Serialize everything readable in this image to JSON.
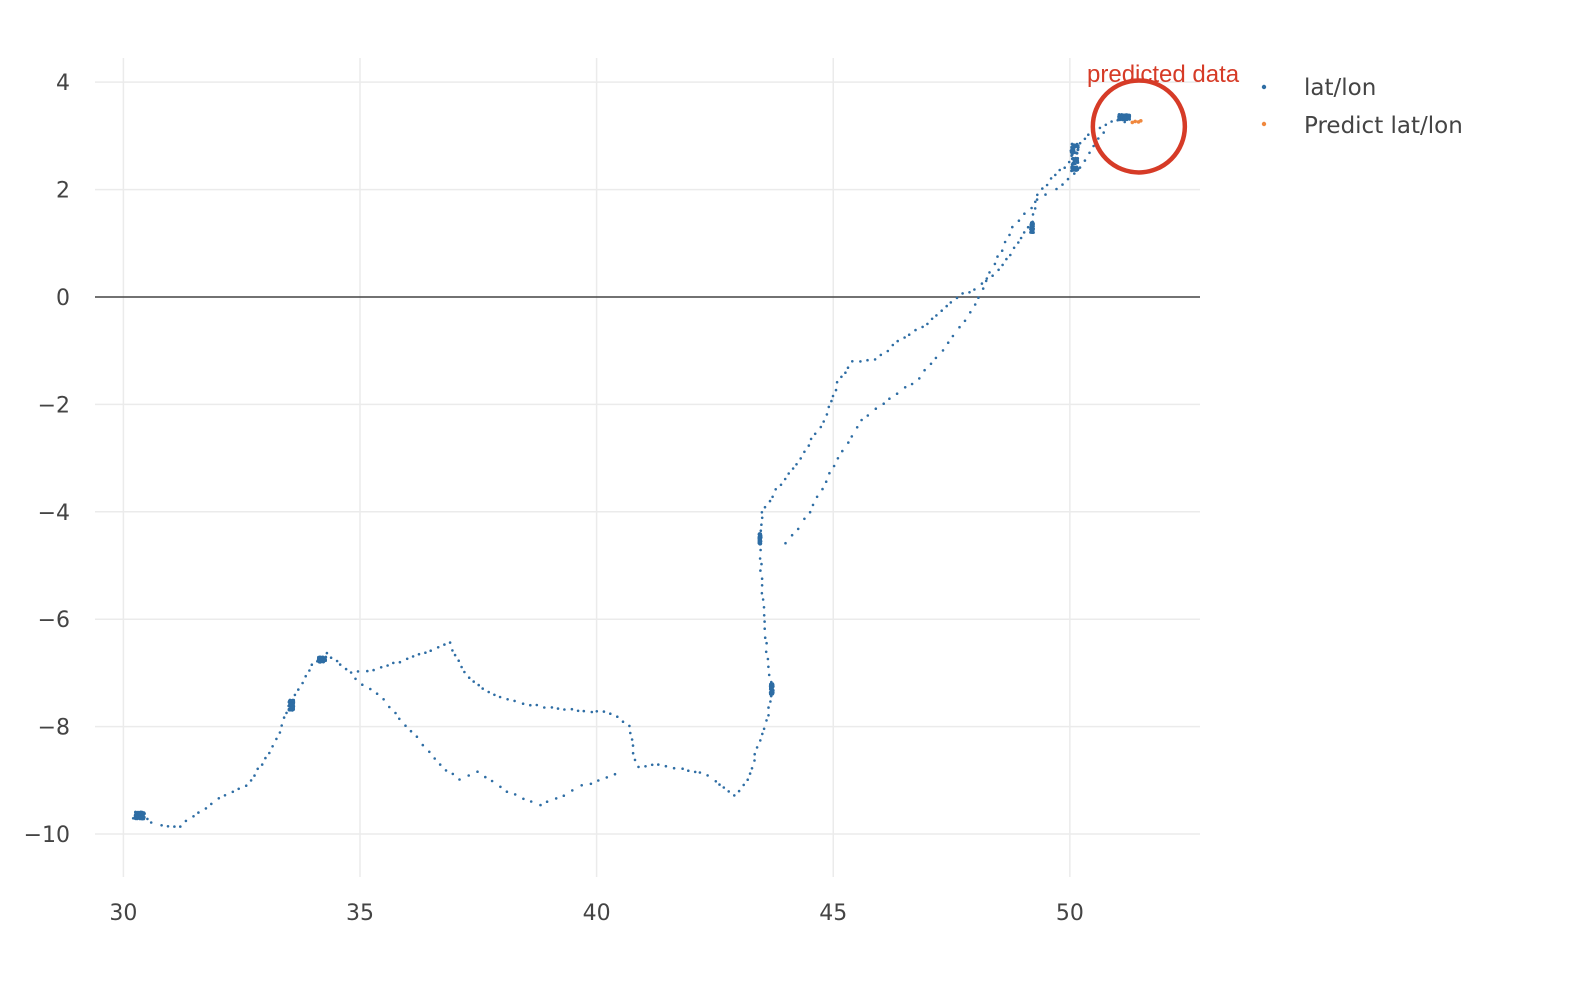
{
  "chart_data": {
    "type": "scatter",
    "title": "",
    "xlabel": "",
    "ylabel": "",
    "xlim": [
      29.4,
      52.75
    ],
    "ylim": [
      -10.8,
      4.45
    ],
    "x_ticks": [
      30,
      35,
      40,
      45,
      50
    ],
    "y_ticks": [
      4,
      2,
      0,
      -2,
      -4,
      -6,
      -8,
      -10
    ],
    "x_tick_labels": [
      "30",
      "35",
      "40",
      "45",
      "50"
    ],
    "y_tick_labels": [
      "4",
      "2",
      "0",
      "−2",
      "−4",
      "−6",
      "−8",
      "−10"
    ],
    "grid": true,
    "zero_line": true,
    "legend_position": "top-right",
    "series": [
      {
        "name": "lat/lon",
        "color": "#2e6da4",
        "path_anchors": [
          [
            30.2,
            -9.7
          ],
          [
            30.4,
            -9.65
          ],
          [
            30.6,
            -9.8
          ],
          [
            30.8,
            -9.85
          ],
          [
            31.2,
            -9.85
          ],
          [
            31.6,
            -9.6
          ],
          [
            32.0,
            -9.35
          ],
          [
            32.3,
            -9.2
          ],
          [
            32.6,
            -9.1
          ],
          [
            33.0,
            -8.6
          ],
          [
            33.3,
            -8.1
          ],
          [
            33.5,
            -7.6
          ],
          [
            33.7,
            -7.3
          ],
          [
            34.0,
            -6.85
          ],
          [
            34.3,
            -6.65
          ],
          [
            34.6,
            -6.85
          ],
          [
            34.8,
            -7.0
          ],
          [
            35.3,
            -6.95
          ],
          [
            36.0,
            -6.75
          ],
          [
            36.9,
            -6.45
          ],
          [
            37.2,
            -7.0
          ],
          [
            37.6,
            -7.3
          ],
          [
            38.1,
            -7.5
          ],
          [
            38.6,
            -7.6
          ],
          [
            39.2,
            -7.65
          ],
          [
            39.6,
            -7.7
          ],
          [
            40.3,
            -7.75
          ],
          [
            40.7,
            -8.0
          ],
          [
            40.8,
            -8.6
          ],
          [
            40.9,
            -8.75
          ],
          [
            41.3,
            -8.7
          ],
          [
            41.8,
            -8.8
          ],
          [
            42.2,
            -8.85
          ],
          [
            42.5,
            -9.0
          ],
          [
            42.9,
            -9.3
          ],
          [
            43.2,
            -9.0
          ],
          [
            43.4,
            -8.4
          ],
          [
            43.6,
            -7.9
          ],
          [
            43.7,
            -7.3
          ],
          [
            43.6,
            -6.6
          ],
          [
            43.5,
            -5.5
          ],
          [
            43.45,
            -4.6
          ],
          [
            43.5,
            -4.0
          ],
          [
            43.8,
            -3.6
          ],
          [
            44.3,
            -3.0
          ],
          [
            44.8,
            -2.3
          ],
          [
            45.1,
            -1.6
          ],
          [
            45.4,
            -1.2
          ],
          [
            45.9,
            -1.15
          ],
          [
            46.5,
            -0.75
          ],
          [
            47.0,
            -0.5
          ],
          [
            47.6,
            0.0
          ],
          [
            48.0,
            0.15
          ],
          [
            48.5,
            0.5
          ],
          [
            48.9,
            1.0
          ],
          [
            49.2,
            1.4
          ],
          [
            49.3,
            1.9
          ],
          [
            49.6,
            2.2
          ],
          [
            50.0,
            2.5
          ],
          [
            50.1,
            2.8
          ],
          [
            50.5,
            3.1
          ],
          [
            51.0,
            3.3
          ],
          [
            51.3,
            3.25
          ]
        ],
        "branch_anchors": [
          [
            34.9,
            -7.1
          ],
          [
            35.5,
            -7.5
          ],
          [
            36.2,
            -8.2
          ],
          [
            36.7,
            -8.7
          ],
          [
            37.1,
            -9.0
          ],
          [
            37.5,
            -8.85
          ],
          [
            38.1,
            -9.2
          ],
          [
            38.8,
            -9.45
          ],
          [
            39.3,
            -9.3
          ],
          [
            39.7,
            -9.1
          ],
          [
            40.2,
            -8.95
          ],
          [
            40.6,
            -8.85
          ]
        ],
        "return_anchors": [
          [
            44.0,
            -4.6
          ],
          [
            44.5,
            -4.0
          ],
          [
            45.1,
            -3.0
          ],
          [
            45.6,
            -2.3
          ],
          [
            46.2,
            -1.9
          ],
          [
            46.8,
            -1.5
          ],
          [
            47.3,
            -1.0
          ],
          [
            47.9,
            -0.3
          ],
          [
            48.4,
            0.6
          ],
          [
            48.8,
            1.3
          ],
          [
            49.3,
            1.8
          ],
          [
            49.7,
            2.0
          ],
          [
            50.1,
            2.3
          ],
          [
            50.5,
            2.8
          ],
          [
            50.8,
            3.2
          ]
        ],
        "clusters": [
          {
            "center": [
              30.35,
              -9.65
            ],
            "spread": [
              0.1,
              0.07
            ]
          },
          {
            "center": [
              33.55,
              -7.6
            ],
            "spread": [
              0.05,
              0.1
            ]
          },
          {
            "center": [
              34.2,
              -6.75
            ],
            "spread": [
              0.08,
              0.05
            ]
          },
          {
            "center": [
              43.45,
              -4.5
            ],
            "spread": [
              0.02,
              0.1
            ]
          },
          {
            "center": [
              43.7,
              -7.3
            ],
            "spread": [
              0.03,
              0.1
            ]
          },
          {
            "center": [
              49.2,
              1.3
            ],
            "spread": [
              0.03,
              0.1
            ]
          },
          {
            "center": [
              50.1,
              2.6
            ],
            "spread": [
              0.08,
              0.25
            ]
          },
          {
            "center": [
              51.15,
              3.35
            ],
            "spread": [
              0.12,
              0.05
            ]
          }
        ]
      },
      {
        "name": "Predict lat/lon",
        "color": "#f0883e",
        "points": [
          [
            51.32,
            3.25
          ],
          [
            51.38,
            3.27
          ],
          [
            51.45,
            3.26
          ],
          [
            51.5,
            3.28
          ]
        ]
      }
    ],
    "annotations": [
      {
        "text": "predicted data",
        "color": "#d63b27",
        "target": [
          51.5,
          3.25
        ]
      }
    ]
  },
  "legend": {
    "items": [
      {
        "label": "lat/lon",
        "color": "#2e6da4"
      },
      {
        "label": "Predict lat/lon",
        "color": "#f0883e"
      }
    ]
  }
}
